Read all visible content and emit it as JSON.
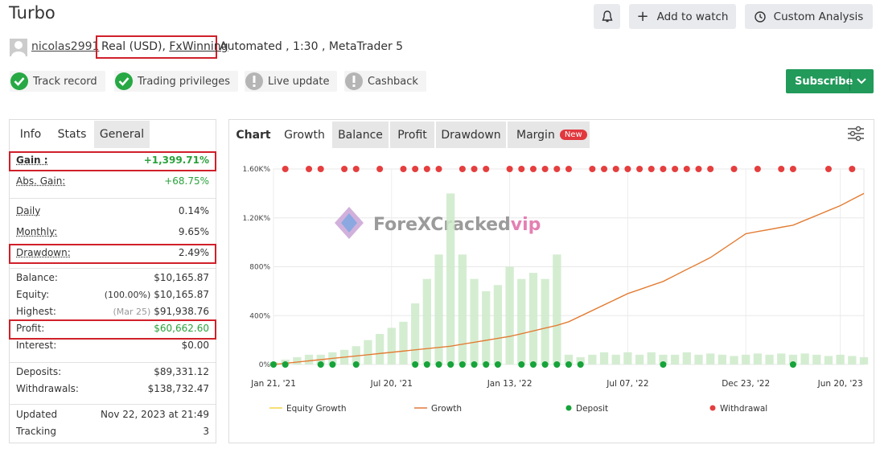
{
  "header": {
    "title": "Turbo",
    "buttons": [
      "Add to watch",
      "Custom Analysis"
    ]
  },
  "account": {
    "user": "nicolas2991",
    "type": "Real (USD),",
    "broker": "FxWinning",
    "details": "Automated , 1:30 , MetaTrader 5"
  },
  "badges": [
    {
      "label": "Track record",
      "status": "ok"
    },
    {
      "label": "Trading privileges",
      "status": "ok"
    },
    {
      "label": "Live update",
      "status": "warn"
    },
    {
      "label": "Cashback",
      "status": "warn"
    }
  ],
  "subscribe": "Subscribe",
  "left_tabs": [
    "Info",
    "Stats",
    "General"
  ],
  "stats": [
    [
      {
        "label": "Gain :",
        "value": "+1,399.71%",
        "highlight": true,
        "positive": true
      },
      {
        "label": "Abs. Gain:",
        "value": "+68.75%",
        "positive": true
      }
    ],
    [
      {
        "label": "Daily",
        "value": "0.14%"
      },
      {
        "label": "Monthly:",
        "value": "9.65%"
      },
      {
        "label": "Drawdown:",
        "value": "2.49%",
        "highlight": true
      }
    ],
    [
      {
        "label": "Balance:",
        "value": "$10,165.87"
      },
      {
        "label": "Equity:",
        "note": "(100.00%)",
        "value": "$10,165.87"
      },
      {
        "label": "Highest:",
        "note": "(Mar 25)",
        "value": "$91,938.76"
      },
      {
        "label": "Profit:",
        "value": "$60,662.60",
        "highlight": true,
        "positive": true
      },
      {
        "label": "Interest:",
        "value": "$0.00"
      }
    ],
    [
      {
        "label": "Deposits:",
        "value": "$89,331.12"
      },
      {
        "label": "Withdrawals:",
        "value": "$138,732.47"
      }
    ],
    [
      {
        "label": "Updated",
        "value": "Nov 22, 2023 at 21:49"
      },
      {
        "label": "Tracking",
        "value": "3"
      }
    ]
  ],
  "chart_tabs": [
    "Chart",
    "Growth",
    "Balance",
    "Profit",
    "Drawdown",
    "Margin"
  ],
  "new_badge": "New",
  "watermark": {
    "text": "ForeXCracked",
    "suffix": "vip"
  },
  "chart_data": {
    "type": "line",
    "categories": [
      "Jan 21, '21",
      null,
      null,
      null,
      null,
      null,
      null,
      null,
      null,
      null,
      "Jul 20, '21",
      null,
      null,
      null,
      null,
      null,
      null,
      null,
      null,
      null,
      "Jan 13, '22",
      null,
      null,
      null,
      null,
      null,
      null,
      null,
      null,
      null,
      "Jul 07, '22",
      null,
      null,
      null,
      null,
      null,
      null,
      null,
      null,
      null,
      "Dec 23, '22",
      null,
      null,
      null,
      null,
      null,
      null,
      null,
      "Jun 20, '23",
      null,
      null
    ],
    "ylim": [
      0,
      1600
    ],
    "yticks": [
      {
        "value": 0,
        "label": "0%"
      },
      {
        "value": 400,
        "label": "400%"
      },
      {
        "value": 800,
        "label": "800%"
      },
      {
        "value": 1200,
        "label": "1.20K%"
      },
      {
        "value": 1600,
        "label": "1.60K%"
      }
    ],
    "grid": true,
    "bars": {
      "color": "#cdeac9",
      "values": [
        20,
        40,
        60,
        80,
        80,
        100,
        120,
        150,
        200,
        250,
        300,
        350,
        500,
        700,
        900,
        1400,
        900,
        700,
        600,
        650,
        800,
        700,
        750,
        700,
        900,
        80,
        60,
        80,
        100,
        80,
        100,
        80,
        100,
        80,
        80,
        100,
        80,
        90,
        80,
        70,
        80,
        90,
        80,
        90,
        80,
        90,
        80,
        70,
        80,
        70,
        60
      ]
    },
    "series": [
      {
        "name": "Equity Growth",
        "color": "#f2d44a",
        "kind": "line",
        "values": [
          0,
          10,
          20,
          30,
          40,
          50,
          60,
          70,
          80,
          90,
          100,
          110,
          120,
          130,
          140,
          150,
          166,
          182,
          198,
          214,
          230,
          252,
          275,
          298,
          320,
          350,
          396,
          442,
          488,
          534,
          580,
          613,
          647,
          680,
          729,
          778,
          826,
          875,
          940,
          1005,
          1070,
          1088,
          1105,
          1123,
          1140,
          1180,
          1220,
          1260,
          1300,
          1350,
          1400
        ]
      },
      {
        "name": "Growth",
        "color": "#e2783a",
        "kind": "line",
        "values": [
          0,
          10,
          20,
          30,
          40,
          50,
          60,
          70,
          80,
          90,
          100,
          110,
          120,
          130,
          140,
          150,
          166,
          182,
          198,
          214,
          230,
          252,
          275,
          298,
          320,
          350,
          396,
          442,
          488,
          534,
          580,
          613,
          647,
          680,
          729,
          778,
          826,
          875,
          940,
          1005,
          1070,
          1088,
          1105,
          1123,
          1140,
          1180,
          1220,
          1260,
          1300,
          1350,
          1400
        ]
      },
      {
        "name": "Deposit",
        "color": "#16a33a",
        "kind": "dots",
        "values": [
          0,
          0,
          null,
          null,
          0,
          0,
          null,
          0,
          null,
          null,
          null,
          null,
          0,
          0,
          0,
          0,
          0,
          0,
          0,
          0,
          null,
          0,
          0,
          0,
          0,
          0,
          0,
          null,
          null,
          null,
          null,
          null,
          null,
          0,
          null,
          null,
          null,
          null,
          null,
          null,
          null,
          null,
          null,
          null,
          0,
          null,
          null,
          null,
          null,
          null,
          null
        ]
      },
      {
        "name": "Withdrawal",
        "color": "#e53e3e",
        "kind": "dots",
        "values": [
          null,
          1600,
          null,
          1600,
          1600,
          null,
          1600,
          1600,
          null,
          1600,
          null,
          1600,
          1600,
          1600,
          1600,
          null,
          1600,
          1600,
          1600,
          null,
          1600,
          1600,
          1600,
          1600,
          1600,
          1600,
          null,
          1600,
          1600,
          1600,
          1600,
          1600,
          1600,
          1600,
          1600,
          1600,
          1600,
          1600,
          null,
          1600,
          null,
          1600,
          null,
          1600,
          1600,
          null,
          null,
          1600,
          null,
          1600,
          null
        ]
      }
    ]
  }
}
